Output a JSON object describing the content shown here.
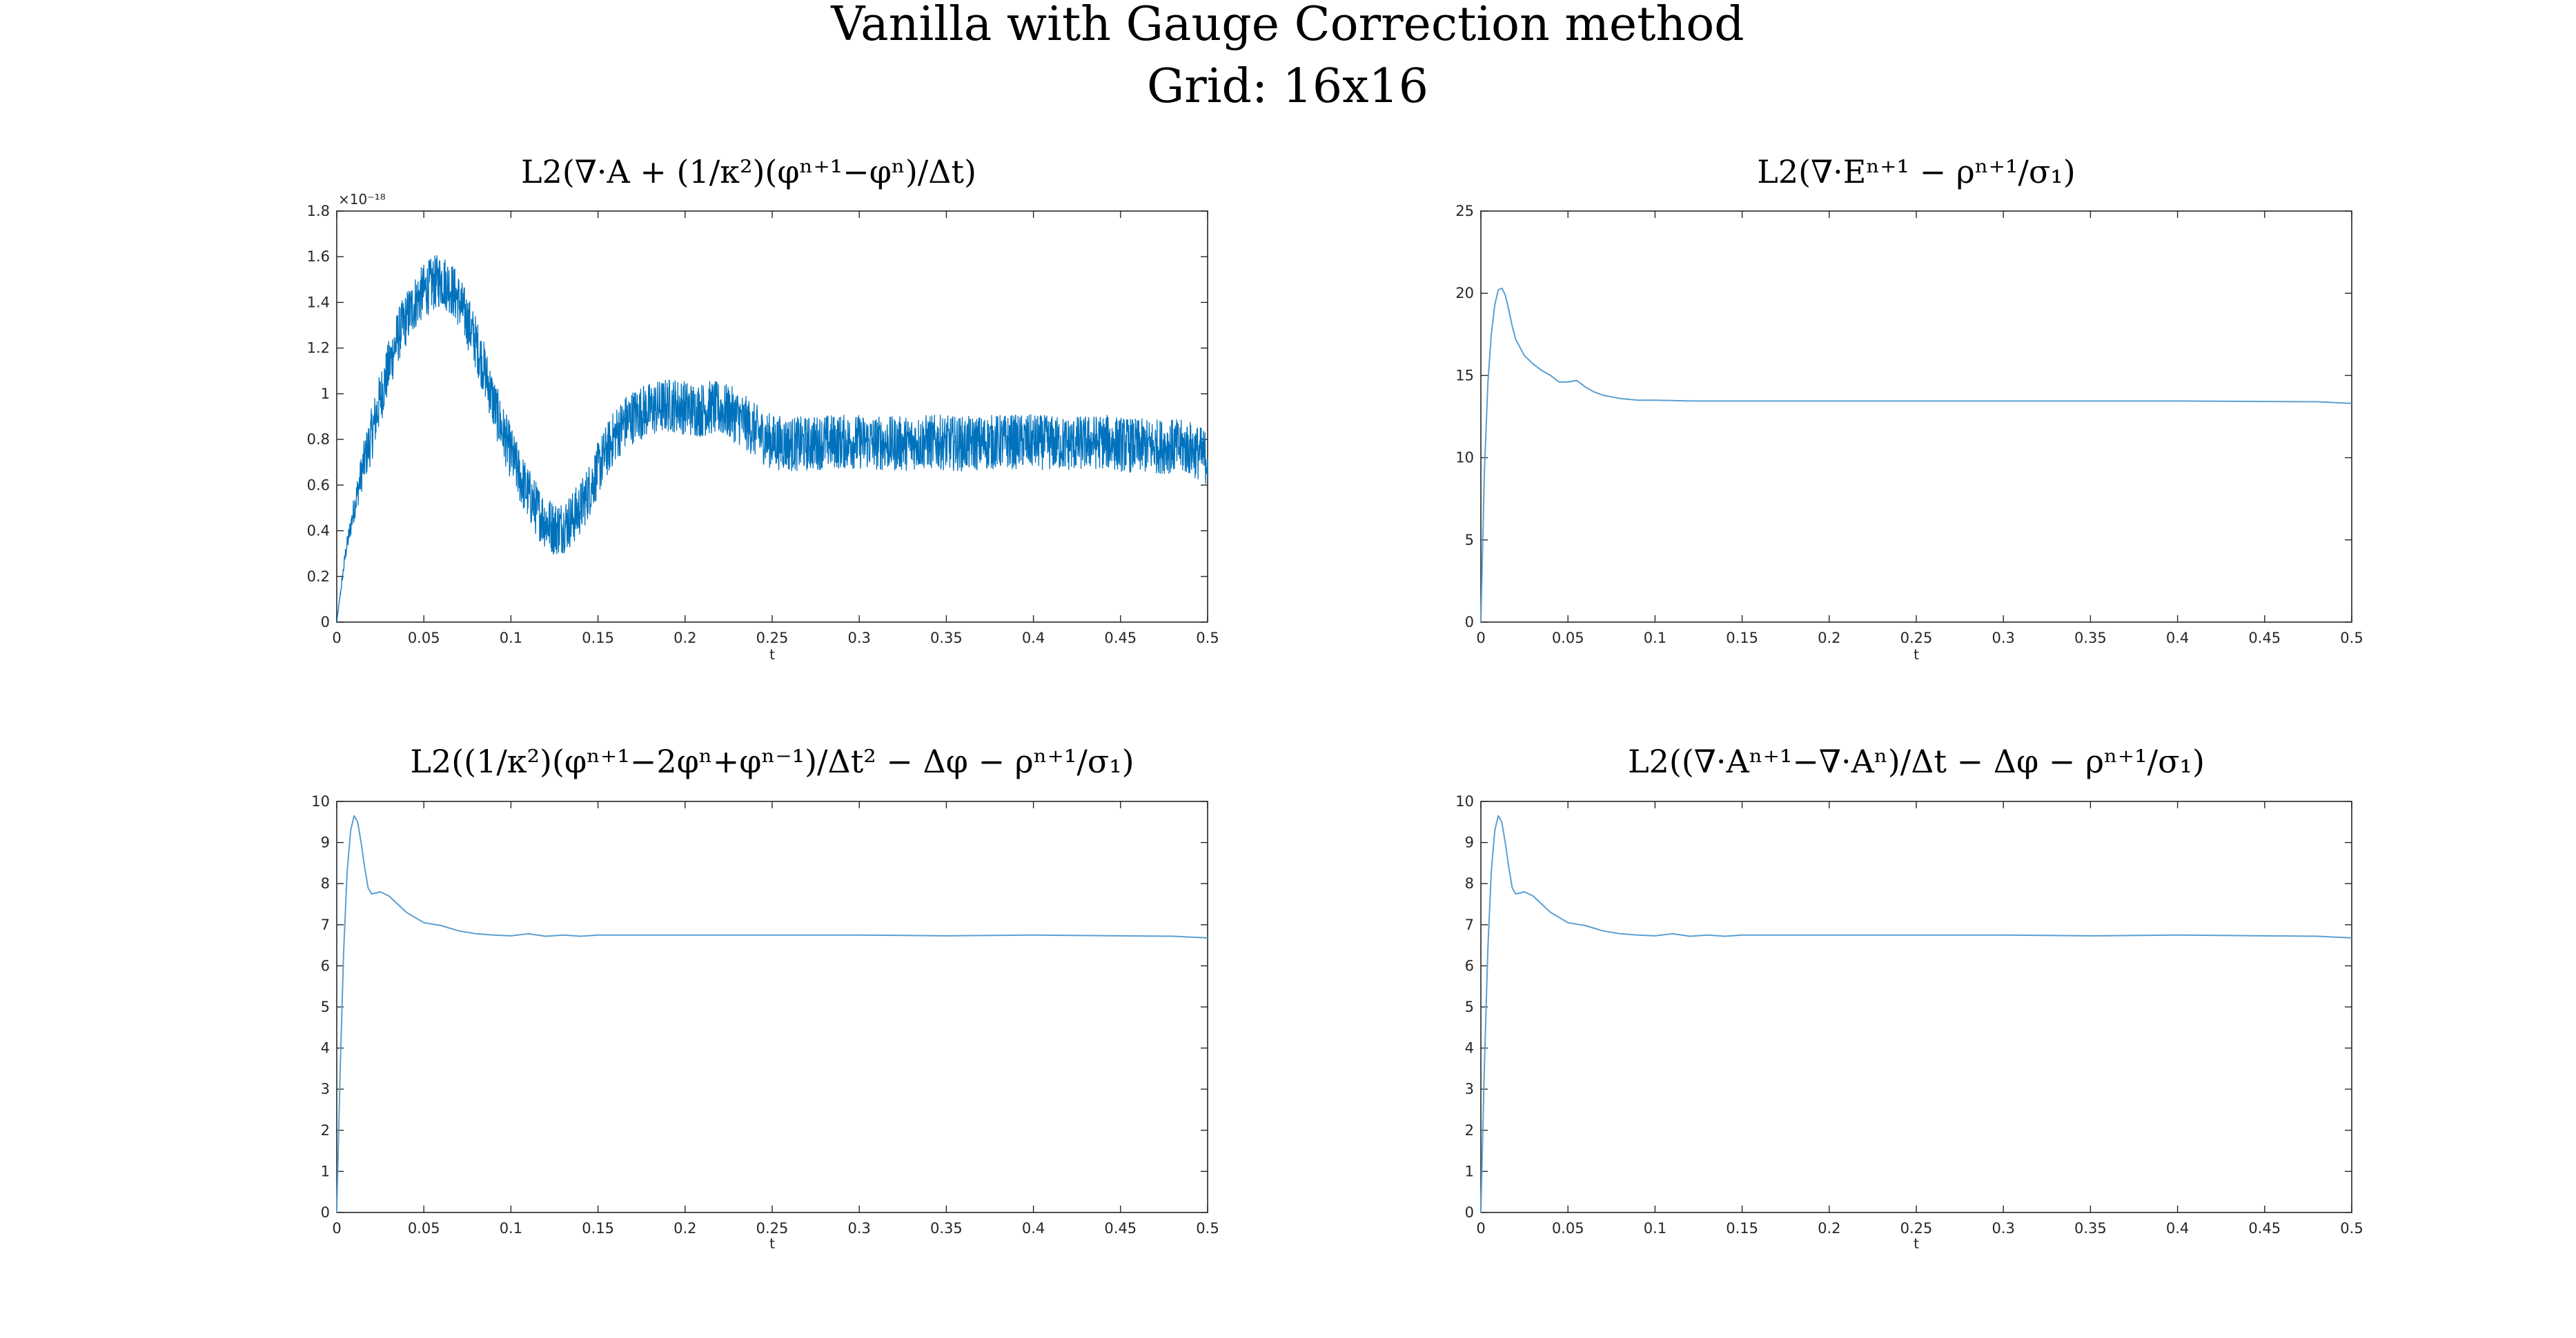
{
  "figure": {
    "title_line1": "Vanilla with Gauge Correction method",
    "title_line2": "Grid: 16x16"
  },
  "colors": {
    "series": "#0072bd",
    "series_light": "#5b9fd1",
    "axis": "#262626"
  },
  "chart_data": [
    {
      "type": "line",
      "title": "L2(∇·A + (1/κ²)(φⁿ⁺¹−φⁿ)/Δt)",
      "xlabel": "t",
      "ylabel": "",
      "xlim": [
        0,
        0.5
      ],
      "ylim": [
        0,
        1.8
      ],
      "exponent_label": "×10⁻¹⁸",
      "xticks": [
        "0",
        "0.05",
        "0.1",
        "0.15",
        "0.2",
        "0.25",
        "0.3",
        "0.35",
        "0.4",
        "0.45",
        "0.5"
      ],
      "yticks": [
        "0",
        "0.2",
        "0.4",
        "0.6",
        "0.8",
        "1",
        "1.2",
        "1.4",
        "1.6",
        "1.8"
      ],
      "noise_amplitude": 0.12,
      "series": [
        {
          "x": [
            0,
            0.005,
            0.01,
            0.015,
            0.02,
            0.025,
            0.03,
            0.035,
            0.04,
            0.045,
            0.05,
            0.055,
            0.06,
            0.065,
            0.07,
            0.075,
            0.08,
            0.085,
            0.09,
            0.095,
            0.1,
            0.105,
            0.11,
            0.115,
            0.12,
            0.125,
            0.13,
            0.135,
            0.14,
            0.145,
            0.15,
            0.155,
            0.16,
            0.165,
            0.17,
            0.175,
            0.18,
            0.185,
            0.19,
            0.195,
            0.2,
            0.205,
            0.21,
            0.215,
            0.22,
            0.225,
            0.23,
            0.235,
            0.24,
            0.245,
            0.25,
            0.26,
            0.27,
            0.28,
            0.3,
            0.32,
            0.34,
            0.36,
            0.38,
            0.4,
            0.42,
            0.44,
            0.46,
            0.48,
            0.49,
            0.5
          ],
          "y": [
            0,
            0.3,
            0.5,
            0.68,
            0.82,
            0.98,
            1.12,
            1.25,
            1.33,
            1.4,
            1.45,
            1.48,
            1.5,
            1.47,
            1.41,
            1.32,
            1.22,
            1.1,
            0.96,
            0.84,
            0.74,
            0.64,
            0.56,
            0.49,
            0.44,
            0.41,
            0.42,
            0.45,
            0.5,
            0.58,
            0.67,
            0.75,
            0.82,
            0.87,
            0.9,
            0.92,
            0.93,
            0.94,
            0.95,
            0.95,
            0.94,
            0.93,
            0.93,
            0.94,
            0.93,
            0.92,
            0.9,
            0.87,
            0.84,
            0.81,
            0.79,
            0.78,
            0.78,
            0.79,
            0.79,
            0.78,
            0.79,
            0.78,
            0.79,
            0.79,
            0.78,
            0.79,
            0.77,
            0.77,
            0.76,
            0.72
          ]
        }
      ]
    },
    {
      "type": "line",
      "title": "L2(∇·Eⁿ⁺¹ − ρⁿ⁺¹/σ₁)",
      "xlabel": "t",
      "ylabel": "",
      "xlim": [
        0,
        0.5
      ],
      "ylim": [
        0,
        25
      ],
      "xticks": [
        "0",
        "0.05",
        "0.1",
        "0.15",
        "0.2",
        "0.25",
        "0.3",
        "0.35",
        "0.4",
        "0.45",
        "0.5"
      ],
      "yticks": [
        "0",
        "5",
        "10",
        "15",
        "20",
        "25"
      ],
      "noise_amplitude": 0,
      "series": [
        {
          "x": [
            0,
            0.002,
            0.004,
            0.006,
            0.008,
            0.01,
            0.012,
            0.014,
            0.016,
            0.018,
            0.02,
            0.025,
            0.03,
            0.035,
            0.04,
            0.045,
            0.05,
            0.055,
            0.06,
            0.065,
            0.07,
            0.08,
            0.09,
            0.1,
            0.12,
            0.15,
            0.2,
            0.25,
            0.3,
            0.35,
            0.4,
            0.45,
            0.48,
            0.5
          ],
          "y": [
            0,
            9,
            14.5,
            17.5,
            19.3,
            20.2,
            20.3,
            19.9,
            19.0,
            18.0,
            17.2,
            16.2,
            15.7,
            15.3,
            15.0,
            14.6,
            14.6,
            14.7,
            14.3,
            14.0,
            13.8,
            13.6,
            13.5,
            13.5,
            13.45,
            13.45,
            13.45,
            13.45,
            13.45,
            13.45,
            13.45,
            13.42,
            13.4,
            13.3
          ]
        }
      ]
    },
    {
      "type": "line",
      "title": "L2((1/κ²)(φⁿ⁺¹−2φⁿ+φⁿ⁻¹)/Δt² − Δφ − ρⁿ⁺¹/σ₁)",
      "xlabel": "t",
      "ylabel": "",
      "xlim": [
        0,
        0.5
      ],
      "ylim": [
        0,
        10
      ],
      "xticks": [
        "0",
        "0.05",
        "0.1",
        "0.15",
        "0.2",
        "0.25",
        "0.3",
        "0.35",
        "0.4",
        "0.45",
        "0.5"
      ],
      "yticks": [
        "0",
        "1",
        "2",
        "3",
        "4",
        "5",
        "6",
        "7",
        "8",
        "9",
        "10"
      ],
      "noise_amplitude": 0,
      "series": [
        {
          "x": [
            0,
            0.002,
            0.004,
            0.006,
            0.008,
            0.01,
            0.012,
            0.014,
            0.016,
            0.018,
            0.02,
            0.025,
            0.03,
            0.035,
            0.04,
            0.05,
            0.06,
            0.07,
            0.08,
            0.09,
            0.1,
            0.11,
            0.12,
            0.13,
            0.14,
            0.15,
            0.2,
            0.25,
            0.3,
            0.35,
            0.4,
            0.45,
            0.48,
            0.5
          ],
          "y": [
            0,
            3.5,
            6.4,
            8.3,
            9.3,
            9.65,
            9.5,
            9.0,
            8.4,
            7.9,
            7.75,
            7.8,
            7.7,
            7.5,
            7.3,
            7.05,
            6.98,
            6.85,
            6.78,
            6.75,
            6.73,
            6.78,
            6.72,
            6.75,
            6.72,
            6.75,
            6.75,
            6.75,
            6.75,
            6.73,
            6.75,
            6.73,
            6.72,
            6.68
          ]
        }
      ]
    },
    {
      "type": "line",
      "title": "L2((∇·Aⁿ⁺¹−∇·Aⁿ)/Δt − Δφ − ρⁿ⁺¹/σ₁)",
      "xlabel": "t",
      "ylabel": "",
      "xlim": [
        0,
        0.5
      ],
      "ylim": [
        0,
        10
      ],
      "xticks": [
        "0",
        "0.05",
        "0.1",
        "0.15",
        "0.2",
        "0.25",
        "0.3",
        "0.35",
        "0.4",
        "0.45",
        "0.5"
      ],
      "yticks": [
        "0",
        "1",
        "2",
        "3",
        "4",
        "5",
        "6",
        "7",
        "8",
        "9",
        "10"
      ],
      "noise_amplitude": 0,
      "series": [
        {
          "x": [
            0,
            0.002,
            0.004,
            0.006,
            0.008,
            0.01,
            0.012,
            0.014,
            0.016,
            0.018,
            0.02,
            0.025,
            0.03,
            0.035,
            0.04,
            0.05,
            0.06,
            0.07,
            0.08,
            0.09,
            0.1,
            0.11,
            0.12,
            0.13,
            0.14,
            0.15,
            0.2,
            0.25,
            0.3,
            0.35,
            0.4,
            0.45,
            0.48,
            0.5
          ],
          "y": [
            0,
            3.5,
            6.4,
            8.3,
            9.3,
            9.65,
            9.5,
            9.0,
            8.4,
            7.9,
            7.75,
            7.8,
            7.7,
            7.5,
            7.3,
            7.05,
            6.98,
            6.85,
            6.78,
            6.75,
            6.73,
            6.78,
            6.72,
            6.75,
            6.72,
            6.75,
            6.75,
            6.75,
            6.75,
            6.73,
            6.75,
            6.73,
            6.72,
            6.68
          ]
        }
      ]
    }
  ]
}
